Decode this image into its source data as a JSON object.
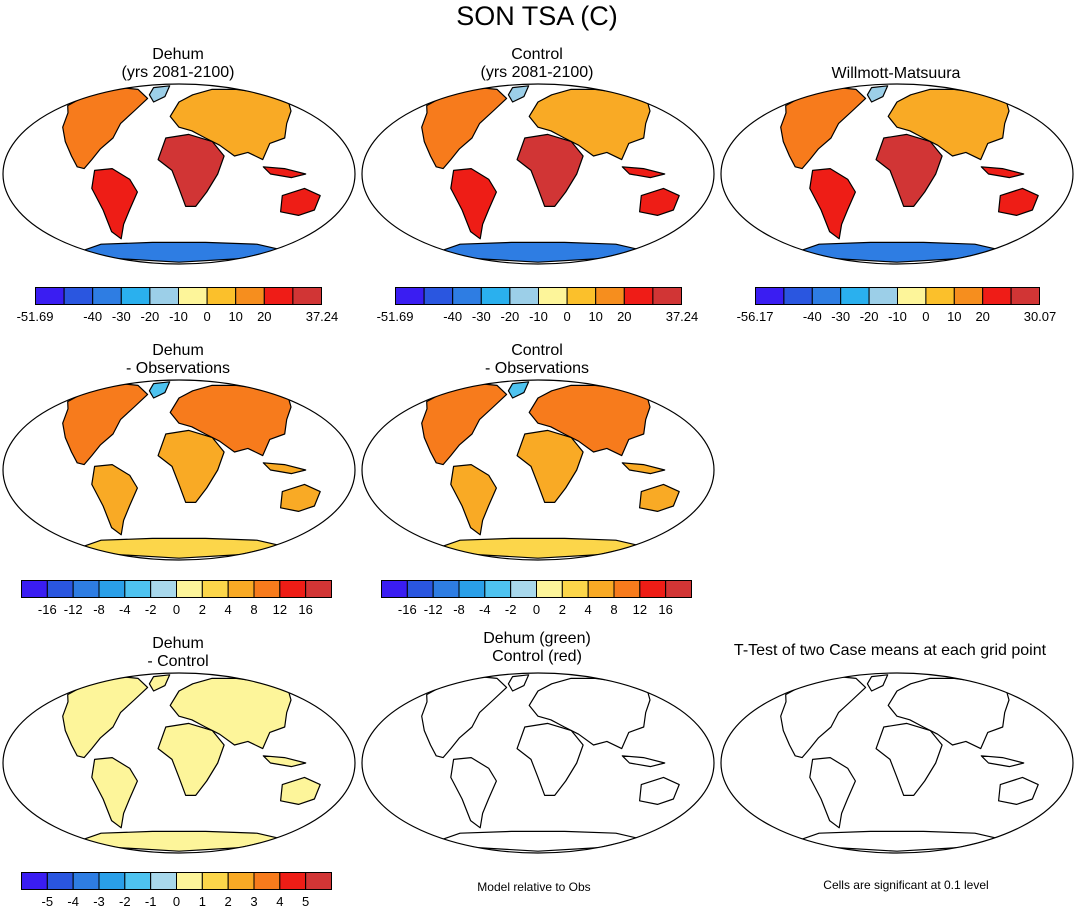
{
  "title": "SON TSA (C)",
  "panels": [
    {
      "key": "p1",
      "title_lines": [
        "Dehum",
        "(yrs 2081-2100)"
      ],
      "style": "hot"
    },
    {
      "key": "p2",
      "title_lines": [
        "Control",
        "(yrs 2081-2100)"
      ],
      "style": "hot"
    },
    {
      "key": "p3",
      "title_lines": [
        "Willmott-Matsuura"
      ],
      "style": "hot"
    },
    {
      "key": "p4",
      "title_lines": [
        "Dehum",
        "- Observations"
      ],
      "style": "warm"
    },
    {
      "key": "p5",
      "title_lines": [
        "Control",
        "- Observations"
      ],
      "style": "warm"
    },
    {
      "key": "p6",
      "title_lines": [
        "Dehum",
        "- Control"
      ],
      "style": "pale"
    },
    {
      "key": "p7",
      "title_lines": [
        "Dehum (green)",
        "Control (red)"
      ],
      "style": "outline"
    },
    {
      "key": "p8",
      "title_lines": [
        "T-Test of two Case means at each grid point"
      ],
      "style": "outline"
    }
  ],
  "colorbars": [
    {
      "key": "cb1",
      "labels": [
        "-51.69",
        "-40",
        "-30",
        "-20",
        "-10",
        "0",
        "10",
        "20",
        "37.24"
      ]
    },
    {
      "key": "cb2",
      "labels": [
        "-51.69",
        "-40",
        "-30",
        "-20",
        "-10",
        "0",
        "10",
        "20",
        "37.24"
      ]
    },
    {
      "key": "cb3",
      "labels": [
        "-56.17",
        "-40",
        "-30",
        "-20",
        "-10",
        "0",
        "10",
        "20",
        "30.07"
      ]
    },
    {
      "key": "cb4",
      "labels": [
        "-16",
        "-12",
        "-8",
        "-4",
        "-2",
        "0",
        "2",
        "4",
        "8",
        "12",
        "16"
      ]
    },
    {
      "key": "cb5",
      "labels": [
        "-16",
        "-12",
        "-8",
        "-4",
        "-2",
        "0",
        "2",
        "4",
        "8",
        "12",
        "16"
      ]
    },
    {
      "key": "cb6",
      "labels": [
        "-5",
        "-4",
        "-3",
        "-2",
        "-1",
        "0",
        "1",
        "2",
        "3",
        "4",
        "5"
      ]
    }
  ],
  "colors": {
    "cb10": [
      "#3a1df2",
      "#2a56e0",
      "#2e7de3",
      "#2ab0ee",
      "#9ccfe8",
      "#fdf59a",
      "#fbc02b",
      "#f68e1e",
      "#ef1c17",
      "#d13535"
    ],
    "cb12": [
      "#3a1df2",
      "#2a56e0",
      "#2e7de3",
      "#2a9fe8",
      "#4ec3f0",
      "#a8d8ec",
      "#fdf59a",
      "#fcd64a",
      "#f9aa25",
      "#f77b1c",
      "#ee1d16",
      "#d13535"
    ],
    "ocean": "#ffffff",
    "outline": "#000000"
  },
  "footnotes": {
    "model_relative": "Model relative to Obs",
    "cells_significant": "Cells are significant at 0.1 level"
  }
}
